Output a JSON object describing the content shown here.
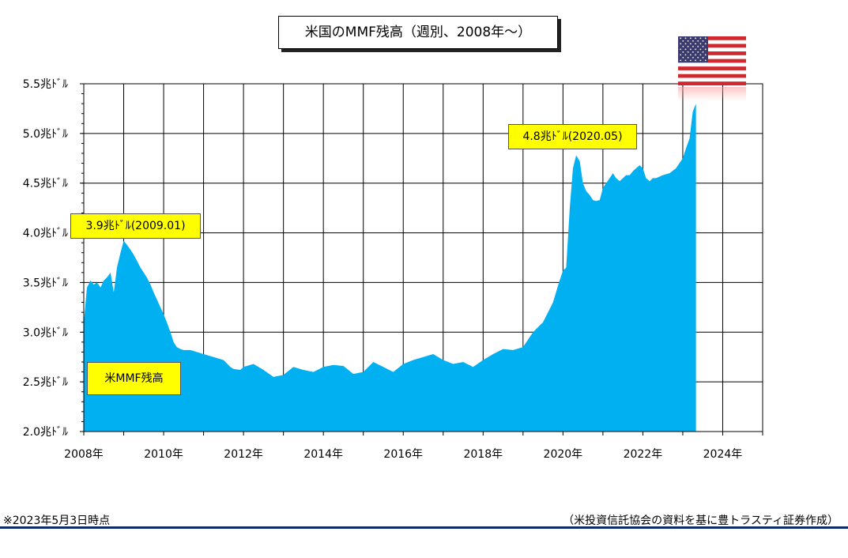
{
  "chart_data": {
    "type": "area",
    "title": "米国のMMF残高（週別、2008年～）",
    "y_unit_labels": [
      "2.0兆ﾄﾞﾙ",
      "2.5兆ﾄﾞﾙ",
      "3.0兆ﾄﾞﾙ",
      "3.5兆ﾄﾞﾙ",
      "4.0兆ﾄﾞﾙ",
      "4.5兆ﾄﾞﾙ",
      "5.0兆ﾄﾞﾙ",
      "5.5兆ﾄﾞﾙ"
    ],
    "y_ticks": [
      2.0,
      2.5,
      3.0,
      3.5,
      4.0,
      4.5,
      5.0,
      5.5
    ],
    "ylim": [
      2.0,
      5.5
    ],
    "x_tick_labels": [
      "2008年",
      "2010年",
      "2012年",
      "2014年",
      "2016年",
      "2018年",
      "2020年",
      "2022年",
      "2024年"
    ],
    "x_ticks": [
      2008,
      2010,
      2012,
      2014,
      2016,
      2018,
      2020,
      2022,
      2024
    ],
    "xlim": [
      2008,
      2025
    ],
    "grid": true,
    "fill_color": "#00b0f0",
    "series": [
      {
        "name": "米MMF残高",
        "x": [
          2008.0,
          2008.08,
          2008.17,
          2008.25,
          2008.33,
          2008.42,
          2008.5,
          2008.58,
          2008.67,
          2008.75,
          2008.8,
          2008.83,
          2008.92,
          2009.0,
          2009.08,
          2009.17,
          2009.25,
          2009.33,
          2009.42,
          2009.5,
          2009.58,
          2009.67,
          2009.75,
          2009.83,
          2009.92,
          2010.0,
          2010.08,
          2010.17,
          2010.25,
          2010.33,
          2010.42,
          2010.5,
          2010.67,
          2010.83,
          2011.0,
          2011.25,
          2011.5,
          2011.67,
          2011.75,
          2011.92,
          2012.0,
          2012.25,
          2012.5,
          2012.75,
          2013.0,
          2013.25,
          2013.5,
          2013.75,
          2014.0,
          2014.25,
          2014.5,
          2014.75,
          2015.0,
          2015.25,
          2015.5,
          2015.75,
          2016.0,
          2016.25,
          2016.5,
          2016.75,
          2017.0,
          2017.25,
          2017.5,
          2017.75,
          2018.0,
          2018.25,
          2018.5,
          2018.75,
          2019.0,
          2019.25,
          2019.5,
          2019.75,
          2019.9,
          2020.0,
          2020.08,
          2020.17,
          2020.25,
          2020.33,
          2020.42,
          2020.5,
          2020.58,
          2020.67,
          2020.75,
          2020.83,
          2020.92,
          2021.0,
          2021.08,
          2021.17,
          2021.25,
          2021.33,
          2021.42,
          2021.5,
          2021.58,
          2021.67,
          2021.75,
          2021.83,
          2021.92,
          2022.0,
          2022.08,
          2022.17,
          2022.25,
          2022.33,
          2022.5,
          2022.67,
          2022.83,
          2023.0,
          2023.08,
          2023.17,
          2023.25,
          2023.33
        ],
        "values": [
          3.1,
          3.45,
          3.52,
          3.48,
          3.5,
          3.45,
          3.52,
          3.55,
          3.6,
          3.4,
          3.55,
          3.65,
          3.8,
          3.92,
          3.88,
          3.83,
          3.78,
          3.72,
          3.65,
          3.6,
          3.55,
          3.48,
          3.4,
          3.33,
          3.25,
          3.18,
          3.1,
          3.0,
          2.9,
          2.85,
          2.83,
          2.82,
          2.82,
          2.8,
          2.78,
          2.75,
          2.72,
          2.65,
          2.63,
          2.62,
          2.65,
          2.68,
          2.62,
          2.55,
          2.57,
          2.65,
          2.62,
          2.6,
          2.65,
          2.67,
          2.66,
          2.58,
          2.6,
          2.7,
          2.65,
          2.6,
          2.68,
          2.72,
          2.75,
          2.78,
          2.72,
          2.68,
          2.7,
          2.65,
          2.72,
          2.78,
          2.83,
          2.82,
          2.85,
          3.0,
          3.1,
          3.3,
          3.5,
          3.62,
          3.65,
          4.25,
          4.65,
          4.78,
          4.72,
          4.5,
          4.42,
          4.38,
          4.33,
          4.32,
          4.33,
          4.45,
          4.5,
          4.55,
          4.6,
          4.55,
          4.52,
          4.55,
          4.58,
          4.58,
          4.62,
          4.65,
          4.68,
          4.65,
          4.55,
          4.52,
          4.55,
          4.55,
          4.58,
          4.6,
          4.65,
          4.75,
          4.85,
          4.95,
          5.22,
          5.3
        ]
      }
    ],
    "annotations": [
      {
        "text": "3.9兆ﾄﾞﾙ(2009.01)"
      },
      {
        "text": "4.8兆ﾄﾞﾙ(2020.05)"
      }
    ]
  },
  "footer": {
    "note_left": "※2023年5月3日時点",
    "note_right": "（米投資信託協会の資料を基に豊トラスティ証券作成）"
  },
  "flag": {
    "icon": "us-flag-icon"
  }
}
